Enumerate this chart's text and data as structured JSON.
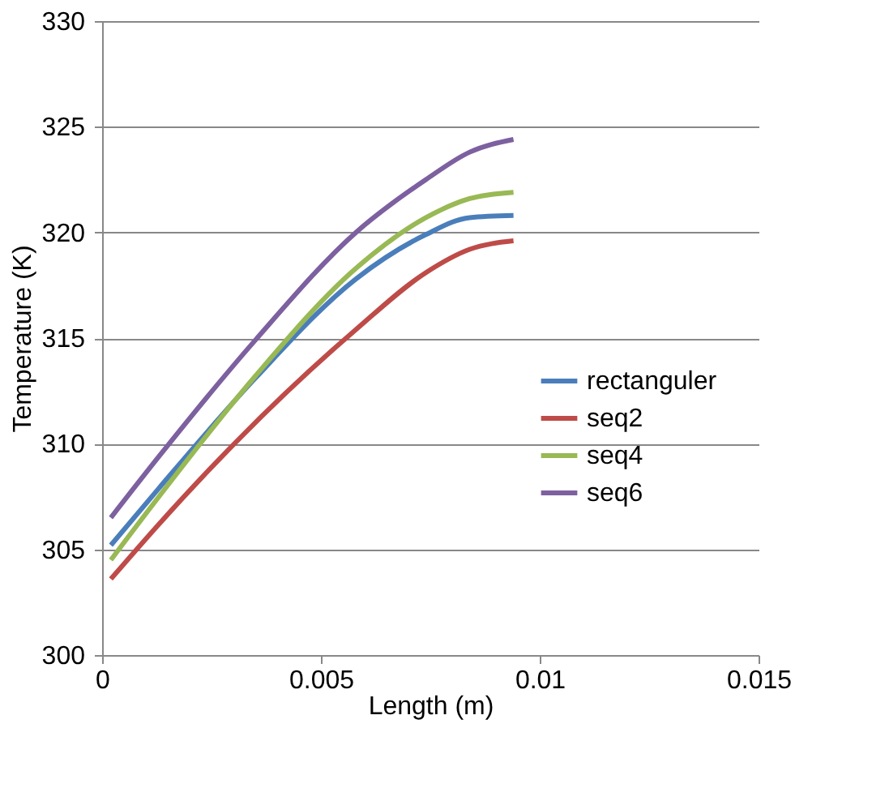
{
  "chart_data": {
    "type": "line",
    "xlabel": "Length (m)",
    "ylabel": "Temperature (K)",
    "x": [
      0.0002,
      0.0013,
      0.0035,
      0.0058,
      0.0074,
      0.0084,
      0.0094
    ],
    "series": [
      {
        "name": "rectanguler",
        "color": "#4a7ebb",
        "values": [
          305.2,
          307.9,
          313.1,
          317.8,
          319.9,
          320.7,
          320.8
        ]
      },
      {
        "name": "seq2",
        "color": "#be4b48",
        "values": [
          303.6,
          306.2,
          311.0,
          315.4,
          318.1,
          319.2,
          319.6
        ]
      },
      {
        "name": "seq4",
        "color": "#98b954",
        "values": [
          304.5,
          307.5,
          313.2,
          318.3,
          320.7,
          321.6,
          321.9
        ]
      },
      {
        "name": "seq6",
        "color": "#7d60a0",
        "values": [
          306.5,
          309.4,
          314.9,
          320.0,
          322.5,
          323.8,
          324.4
        ]
      }
    ],
    "xlim": [
      0,
      0.015
    ],
    "xticks": [
      0,
      0.005,
      0.01,
      0.015
    ],
    "ylim": [
      300,
      330
    ],
    "yticks": [
      300,
      305,
      310,
      315,
      320,
      325,
      330
    ],
    "grid": "y",
    "legend": "right",
    "marker": "none",
    "line_style": "solid"
  }
}
